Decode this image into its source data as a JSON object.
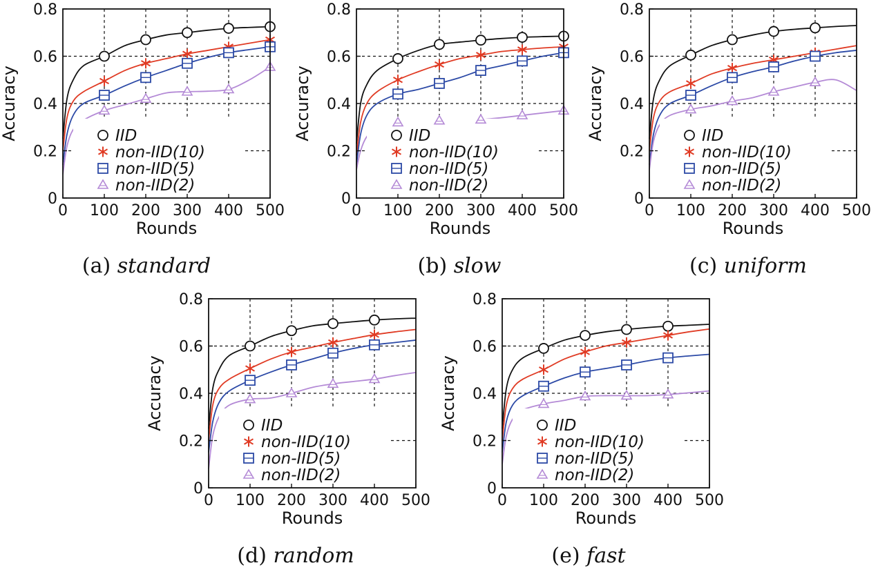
{
  "colors": {
    "IID": "#111111",
    "non-IID(10)": "#e03b24",
    "non-IID(5)": "#2b49a6",
    "non-IID(2)": "#b48ad6",
    "grid": "#111111"
  },
  "markers": {
    "IID": "circle",
    "non-IID(10)": "asterisk",
    "non-IID(5)": "square",
    "non-IID(2)": "triangle"
  },
  "chart_data": [
    {
      "type": "line",
      "caption_prefix": "(a)",
      "caption_name": "standard",
      "xlabel": "Rounds",
      "ylabel": "Accuracy",
      "xlim": [
        0,
        500
      ],
      "ylim": [
        0,
        0.8
      ],
      "xticks": [
        "0",
        "100",
        "200",
        "300",
        "400",
        "500"
      ],
      "yticks": [
        "0",
        "0.2",
        "0.4",
        "0.6",
        "0.8"
      ],
      "grid": true,
      "legend_position": "lower-right",
      "series": [
        {
          "name": "IID",
          "x": [
            0,
            10,
            25,
            50,
            100,
            150,
            200,
            250,
            300,
            350,
            400,
            450,
            500
          ],
          "y": [
            0.25,
            0.42,
            0.5,
            0.56,
            0.6,
            0.645,
            0.67,
            0.69,
            0.7,
            0.71,
            0.718,
            0.722,
            0.725
          ],
          "marker_x": [
            100,
            200,
            300,
            400,
            500
          ]
        },
        {
          "name": "non-IID(10)",
          "x": [
            0,
            10,
            25,
            50,
            100,
            150,
            200,
            250,
            300,
            350,
            400,
            450,
            500
          ],
          "y": [
            0.2,
            0.34,
            0.41,
            0.45,
            0.495,
            0.54,
            0.57,
            0.59,
            0.61,
            0.625,
            0.64,
            0.655,
            0.67
          ],
          "marker_x": [
            100,
            200,
            300,
            400,
            500
          ]
        },
        {
          "name": "non-IID(5)",
          "x": [
            0,
            10,
            25,
            50,
            100,
            150,
            200,
            250,
            300,
            350,
            400,
            450,
            500
          ],
          "y": [
            0.14,
            0.27,
            0.35,
            0.4,
            0.435,
            0.475,
            0.51,
            0.54,
            0.57,
            0.595,
            0.615,
            0.628,
            0.64
          ],
          "marker_x": [
            100,
            200,
            300,
            400,
            500
          ]
        },
        {
          "name": "non-IID(2)",
          "x": [
            0,
            10,
            25,
            50,
            100,
            150,
            200,
            250,
            300,
            350,
            400,
            450,
            500
          ],
          "y": [
            0.1,
            0.22,
            0.29,
            0.33,
            0.37,
            0.395,
            0.42,
            0.445,
            0.45,
            0.452,
            0.46,
            0.5,
            0.555
          ],
          "marker_x": [
            100,
            200,
            300,
            400,
            500
          ]
        }
      ]
    },
    {
      "type": "line",
      "caption_prefix": "(b)",
      "caption_name": "slow",
      "xlabel": "Rounds",
      "ylabel": "Accuracy",
      "xlim": [
        0,
        500
      ],
      "ylim": [
        0,
        0.8
      ],
      "xticks": [
        "0",
        "100",
        "200",
        "300",
        "400",
        "500"
      ],
      "yticks": [
        "0",
        "0.2",
        "0.4",
        "0.6",
        "0.8"
      ],
      "grid": true,
      "legend_position": "lower-right",
      "series": [
        {
          "name": "IID",
          "x": [
            0,
            10,
            25,
            50,
            100,
            150,
            200,
            250,
            300,
            350,
            400,
            450,
            500
          ],
          "y": [
            0.23,
            0.4,
            0.48,
            0.54,
            0.59,
            0.625,
            0.65,
            0.66,
            0.668,
            0.675,
            0.68,
            0.683,
            0.685
          ],
          "marker_x": [
            100,
            200,
            300,
            400,
            500
          ]
        },
        {
          "name": "non-IID(10)",
          "x": [
            0,
            10,
            25,
            50,
            100,
            150,
            200,
            250,
            300,
            350,
            400,
            450,
            500
          ],
          "y": [
            0.18,
            0.32,
            0.4,
            0.45,
            0.5,
            0.535,
            0.565,
            0.59,
            0.605,
            0.62,
            0.628,
            0.635,
            0.64
          ],
          "marker_x": [
            100,
            200,
            300,
            400,
            500
          ]
        },
        {
          "name": "non-IID(5)",
          "x": [
            0,
            10,
            25,
            50,
            100,
            150,
            200,
            250,
            300,
            350,
            400,
            450,
            500
          ],
          "y": [
            0.14,
            0.27,
            0.35,
            0.4,
            0.44,
            0.46,
            0.485,
            0.51,
            0.54,
            0.56,
            0.58,
            0.6,
            0.615
          ],
          "marker_x": [
            100,
            200,
            300,
            400,
            500
          ]
        },
        {
          "name": "non-IID(2)",
          "x": [
            0,
            10,
            25,
            50,
            100,
            150,
            200,
            250,
            300,
            350,
            400,
            450,
            500
          ],
          "y": [
            0.12,
            0.2,
            0.26,
            0.3,
            0.32,
            0.326,
            0.328,
            0.33,
            0.332,
            0.34,
            0.35,
            0.36,
            0.37
          ],
          "marker_x": [
            100,
            200,
            300,
            400,
            500
          ]
        }
      ]
    },
    {
      "type": "line",
      "caption_prefix": "(c)",
      "caption_name": "uniform",
      "xlabel": "Rounds",
      "ylabel": "Accuracy",
      "xlim": [
        0,
        500
      ],
      "ylim": [
        0,
        0.8
      ],
      "xticks": [
        "0",
        "100",
        "200",
        "300",
        "400",
        "500"
      ],
      "yticks": [
        "0",
        "0.2",
        "0.4",
        "0.6",
        "0.8"
      ],
      "grid": true,
      "legend_position": "lower-right",
      "series": [
        {
          "name": "IID",
          "x": [
            0,
            10,
            25,
            50,
            100,
            150,
            200,
            250,
            300,
            350,
            400,
            450,
            500
          ],
          "y": [
            0.25,
            0.42,
            0.5,
            0.56,
            0.605,
            0.645,
            0.67,
            0.69,
            0.705,
            0.714,
            0.72,
            0.726,
            0.73
          ],
          "marker_x": [
            100,
            200,
            300,
            400
          ]
        },
        {
          "name": "non-IID(10)",
          "x": [
            0,
            10,
            25,
            50,
            100,
            150,
            200,
            250,
            300,
            350,
            400,
            450,
            500
          ],
          "y": [
            0.2,
            0.34,
            0.41,
            0.45,
            0.485,
            0.525,
            0.55,
            0.57,
            0.585,
            0.6,
            0.615,
            0.63,
            0.645
          ],
          "marker_x": [
            100,
            200,
            300,
            400
          ]
        },
        {
          "name": "non-IID(5)",
          "x": [
            0,
            10,
            25,
            50,
            100,
            150,
            200,
            250,
            300,
            350,
            400,
            450,
            500
          ],
          "y": [
            0.14,
            0.27,
            0.35,
            0.4,
            0.435,
            0.475,
            0.51,
            0.535,
            0.555,
            0.58,
            0.6,
            0.615,
            0.625
          ],
          "marker_x": [
            100,
            200,
            300,
            400
          ]
        },
        {
          "name": "non-IID(2)",
          "x": [
            0,
            10,
            25,
            50,
            100,
            150,
            200,
            250,
            300,
            350,
            400,
            450,
            500
          ],
          "y": [
            0.12,
            0.24,
            0.31,
            0.35,
            0.375,
            0.39,
            0.41,
            0.425,
            0.45,
            0.47,
            0.49,
            0.5,
            0.455
          ],
          "marker_x": [
            100,
            200,
            300,
            400
          ]
        }
      ]
    },
    {
      "type": "line",
      "caption_prefix": "(d)",
      "caption_name": "random",
      "xlabel": "Rounds",
      "ylabel": "Accuracy",
      "xlim": [
        0,
        500
      ],
      "ylim": [
        0,
        0.8
      ],
      "xticks": [
        "0",
        "100",
        "200",
        "300",
        "400",
        "500"
      ],
      "yticks": [
        "0",
        "0.2",
        "0.4",
        "0.6",
        "0.8"
      ],
      "grid": true,
      "legend_position": "lower-right",
      "series": [
        {
          "name": "IID",
          "x": [
            0,
            10,
            25,
            50,
            100,
            150,
            200,
            250,
            300,
            350,
            400,
            450,
            500
          ],
          "y": [
            0.25,
            0.42,
            0.5,
            0.56,
            0.6,
            0.64,
            0.665,
            0.685,
            0.695,
            0.703,
            0.71,
            0.715,
            0.718
          ],
          "marker_x": [
            100,
            200,
            300,
            400
          ]
        },
        {
          "name": "non-IID(10)",
          "x": [
            0,
            10,
            25,
            50,
            100,
            150,
            200,
            250,
            300,
            350,
            400,
            450,
            500
          ],
          "y": [
            0.2,
            0.35,
            0.42,
            0.46,
            0.505,
            0.545,
            0.575,
            0.595,
            0.615,
            0.632,
            0.648,
            0.66,
            0.67
          ],
          "marker_x": [
            100,
            200,
            300,
            400
          ]
        },
        {
          "name": "non-IID(5)",
          "x": [
            0,
            10,
            25,
            50,
            100,
            150,
            200,
            250,
            300,
            350,
            400,
            450,
            500
          ],
          "y": [
            0.15,
            0.28,
            0.36,
            0.41,
            0.455,
            0.49,
            0.52,
            0.545,
            0.57,
            0.59,
            0.605,
            0.615,
            0.625
          ],
          "marker_x": [
            100,
            200,
            300,
            400
          ]
        },
        {
          "name": "non-IID(2)",
          "x": [
            0,
            10,
            25,
            50,
            100,
            150,
            200,
            250,
            300,
            350,
            400,
            450,
            500
          ],
          "y": [
            0.08,
            0.22,
            0.3,
            0.35,
            0.375,
            0.38,
            0.4,
            0.425,
            0.44,
            0.45,
            0.46,
            0.475,
            0.488
          ],
          "marker_x": [
            100,
            200,
            300,
            400
          ]
        }
      ]
    },
    {
      "type": "line",
      "caption_prefix": "(e)",
      "caption_name": "fast",
      "xlabel": "Rounds",
      "ylabel": "Accuracy",
      "xlim": [
        0,
        500
      ],
      "ylim": [
        0,
        0.8
      ],
      "xticks": [
        "0",
        "100",
        "200",
        "300",
        "400",
        "500"
      ],
      "yticks": [
        "0",
        "0.2",
        "0.4",
        "0.6",
        "0.8"
      ],
      "grid": true,
      "legend_position": "lower-right",
      "series": [
        {
          "name": "IID",
          "x": [
            0,
            10,
            25,
            50,
            100,
            150,
            200,
            250,
            300,
            350,
            400,
            450,
            500
          ],
          "y": [
            0.25,
            0.42,
            0.5,
            0.55,
            0.59,
            0.625,
            0.645,
            0.66,
            0.67,
            0.678,
            0.684,
            0.688,
            0.692
          ],
          "marker_x": [
            100,
            200,
            300,
            400
          ]
        },
        {
          "name": "non-IID(10)",
          "x": [
            0,
            10,
            25,
            50,
            100,
            150,
            200,
            250,
            300,
            350,
            400,
            450,
            500
          ],
          "y": [
            0.2,
            0.35,
            0.42,
            0.46,
            0.5,
            0.545,
            0.575,
            0.6,
            0.615,
            0.63,
            0.645,
            0.66,
            0.672
          ],
          "marker_x": [
            100,
            200,
            300,
            400
          ]
        },
        {
          "name": "non-IID(5)",
          "x": [
            0,
            10,
            25,
            50,
            100,
            150,
            200,
            250,
            300,
            350,
            400,
            450,
            500
          ],
          "y": [
            0.15,
            0.28,
            0.35,
            0.39,
            0.43,
            0.465,
            0.49,
            0.505,
            0.52,
            0.537,
            0.55,
            0.558,
            0.565
          ],
          "marker_x": [
            100,
            200,
            300,
            400
          ]
        },
        {
          "name": "non-IID(2)",
          "x": [
            0,
            10,
            25,
            50,
            100,
            150,
            200,
            250,
            300,
            350,
            400,
            450,
            500
          ],
          "y": [
            0.1,
            0.22,
            0.29,
            0.33,
            0.355,
            0.37,
            0.387,
            0.39,
            0.39,
            0.39,
            0.395,
            0.402,
            0.41
          ],
          "marker_x": [
            100,
            200,
            300,
            400
          ]
        }
      ]
    }
  ]
}
